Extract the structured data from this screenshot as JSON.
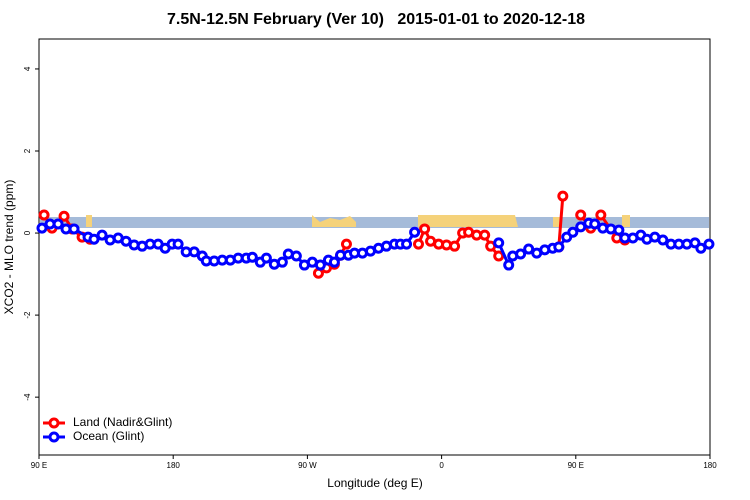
{
  "chart_data": {
    "type": "line",
    "title": "7.5N-12.5N February (Ver 10)   2015-01-01 to 2020-12-18",
    "x_label": "Longitude (deg E)",
    "y_label": "XCO2 - MLO trend (ppm)",
    "xlim": [
      90,
      540
    ],
    "xticks": [
      {
        "value": 90,
        "label": "90 E"
      },
      {
        "value": 180,
        "label": "180"
      },
      {
        "value": 270,
        "label": "90 W"
      },
      {
        "value": 360,
        "label": "0"
      },
      {
        "value": 450,
        "label": "90 E"
      },
      {
        "value": 540,
        "label": "180"
      }
    ],
    "ylim": [
      -5.41,
      4.73
    ],
    "yticks": [
      -4,
      -2,
      0,
      2,
      4
    ],
    "legend": "bottom-left",
    "series": [
      {
        "name": "Land (Nadir&Glint)",
        "color": "#ff0000",
        "x": [
          93.4,
          98.7,
          106.8,
          112.2,
          118.9,
          124.3,
          200,
          277.4,
          282.8,
          288.1,
          292.2,
          296.2,
          320,
          344.5,
          348.6,
          352.6,
          358.0,
          363.3,
          368.7,
          374.1,
          378.1,
          383.5,
          388.9,
          392.9,
          398.3,
          420,
          438.6,
          441.3,
          450,
          453.3,
          460.0,
          466.8,
          477.5,
          482.9
        ],
        "values": [
          0.44,
          0.12,
          0.41,
          0.1,
          -0.1,
          -0.15,
          null,
          -0.98,
          -0.85,
          -0.76,
          -0.54,
          -0.27,
          null,
          -0.27,
          0.1,
          -0.2,
          -0.27,
          -0.29,
          -0.32,
          0.0,
          0.02,
          -0.05,
          -0.05,
          -0.32,
          -0.56,
          null,
          -0.34,
          0.9,
          null,
          0.44,
          0.12,
          0.44,
          -0.12,
          -0.17
        ]
      },
      {
        "name": "Ocean (Glint)",
        "color": "#0000ff",
        "x": [
          92.0,
          97.4,
          102.8,
          108.1,
          113.5,
          122.9,
          126.9,
          132.3,
          137.7,
          143.1,
          148.4,
          153.8,
          159.2,
          164.5,
          169.9,
          174.6,
          179.3,
          183.3,
          188.7,
          194.1,
          199.5,
          202.2,
          207.5,
          212.9,
          218.3,
          223.6,
          229.0,
          233.1,
          238.4,
          242.5,
          247.8,
          253.2,
          257.2,
          262.6,
          268.0,
          273.3,
          278.7,
          284.1,
          288.1,
          292.2,
          297.5,
          301.6,
          306.9,
          312.3,
          317.7,
          323.0,
          328.4,
          332.4,
          336.5,
          341.9,
          370,
          398.3,
          405.0,
          407.7,
          413.0,
          418.4,
          423.8,
          429.2,
          434.5,
          438.6,
          443.9,
          448.0,
          453.3,
          458.7,
          462.7,
          468.1,
          473.5,
          478.9,
          482.9,
          488.3,
          493.6,
          497.7,
          503.0,
          508.4,
          513.8,
          519.1,
          524.5,
          529.9,
          533.9,
          539.3
        ],
        "values": [
          0.12,
          0.22,
          0.22,
          0.1,
          0.1,
          -0.1,
          -0.15,
          -0.05,
          -0.17,
          -0.12,
          -0.2,
          -0.29,
          -0.32,
          -0.27,
          -0.27,
          -0.37,
          -0.27,
          -0.27,
          -0.46,
          -0.46,
          -0.56,
          -0.68,
          -0.68,
          -0.66,
          -0.66,
          -0.61,
          -0.61,
          -0.59,
          -0.71,
          -0.61,
          -0.76,
          -0.71,
          -0.51,
          -0.56,
          -0.78,
          -0.71,
          -0.78,
          -0.66,
          -0.71,
          -0.54,
          -0.54,
          -0.49,
          -0.49,
          -0.44,
          -0.37,
          -0.32,
          -0.27,
          -0.27,
          -0.27,
          0.02,
          null,
          -0.24,
          -0.78,
          -0.56,
          -0.51,
          -0.39,
          -0.49,
          -0.41,
          -0.37,
          -0.34,
          -0.1,
          0.02,
          0.15,
          0.24,
          0.22,
          0.12,
          0.1,
          0.07,
          -0.12,
          -0.12,
          -0.05,
          -0.15,
          -0.1,
          -0.17,
          -0.27,
          -0.27,
          -0.27,
          -0.24,
          -0.37,
          -0.27
        ]
      }
    ]
  }
}
